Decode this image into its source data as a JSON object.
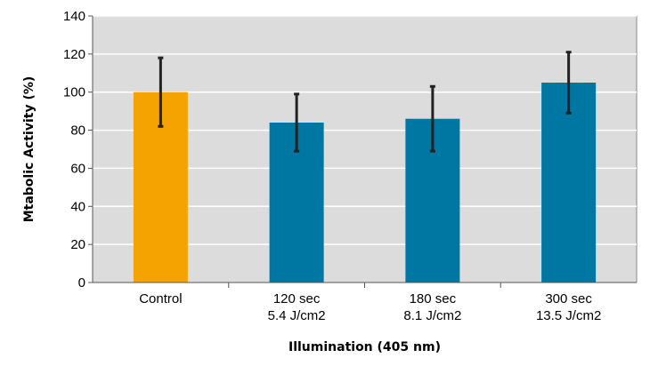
{
  "chart_data": {
    "type": "bar",
    "title": "",
    "xlabel": "Illumination (405 nm)",
    "ylabel": "Mtabolic Activity (%)",
    "ylim": [
      0,
      140
    ],
    "yticks": [
      0,
      20,
      40,
      60,
      80,
      100,
      120,
      140
    ],
    "grid": true,
    "categories": [
      {
        "line1": "Control",
        "line2": ""
      },
      {
        "line1": "120 sec",
        "line2": "5.4 J/cm2"
      },
      {
        "line1": "180 sec",
        "line2": "8.1 J/cm2"
      },
      {
        "line1": "300 sec",
        "line2": "13.5 J/cm2"
      }
    ],
    "values": [
      100,
      84,
      86,
      105
    ],
    "error_low": [
      82,
      69,
      69,
      89
    ],
    "error_high": [
      118,
      99,
      103,
      121
    ],
    "colors": [
      "#F5A300",
      "#0076A3",
      "#0076A3",
      "#0076A3"
    ],
    "plot_background": "#DCDCDC",
    "grid_color": "#FFFFFF",
    "error_color": "#222222"
  }
}
